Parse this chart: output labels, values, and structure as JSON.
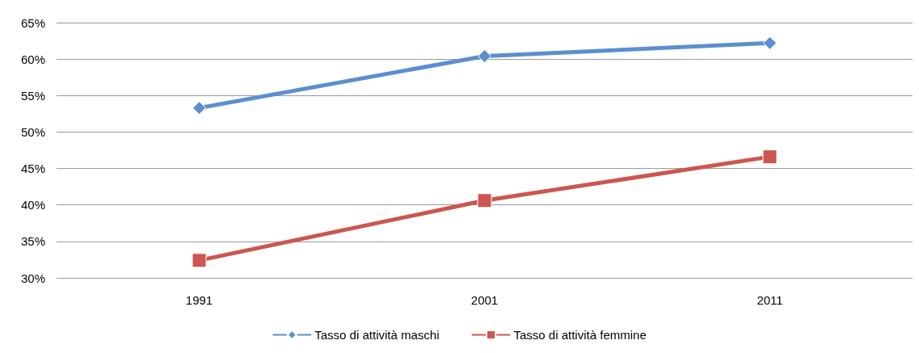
{
  "chart_data": {
    "type": "line",
    "categories": [
      "1991",
      "2001",
      "2011"
    ],
    "series": [
      {
        "name": "Tasso di attività maschi",
        "color": "#5b8fcf",
        "marker": "diamond",
        "values": [
          53.3,
          60.4,
          62.2
        ]
      },
      {
        "name": "Tasso di attività femmine",
        "color": "#cd5650",
        "marker": "square",
        "values": [
          32.4,
          40.6,
          46.6
        ]
      }
    ],
    "ylim": [
      30,
      65
    ],
    "yticks": [
      {
        "value": 30,
        "label": "30%"
      },
      {
        "value": 35,
        "label": "35%"
      },
      {
        "value": 40,
        "label": "40%"
      },
      {
        "value": 45,
        "label": "45%"
      },
      {
        "value": 50,
        "label": "50%"
      },
      {
        "value": 55,
        "label": "55%"
      },
      {
        "value": 60,
        "label": "60%"
      },
      {
        "value": 65,
        "label": "65%"
      }
    ],
    "grid": "y",
    "legend": "bottom",
    "line_style": "solid"
  }
}
